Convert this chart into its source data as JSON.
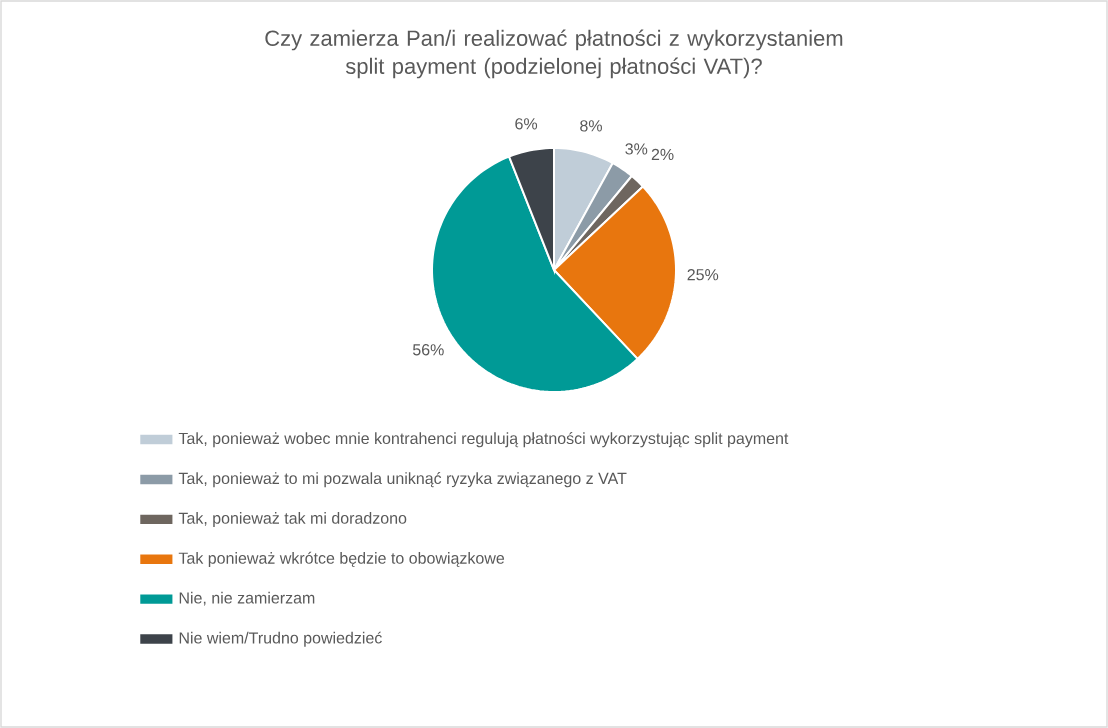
{
  "chart_data": {
    "type": "pie",
    "title": "Czy zamierza Pan/i realizować płatności z wykorzystaniem split payment (podzielonej płatności VAT)?",
    "categories": [
      "Tak, ponieważ wobec mnie kontrahenci regulują płatności wykorzystując split payment",
      "Tak, ponieważ to mi pozwala uniknąć ryzyka związanego z VAT",
      "Tak, ponieważ tak mi doradzono",
      "Tak ponieważ wkrótce będzie to obowiązkowe",
      "Nie, nie zamierzam",
      "Nie wiem/Trudno powiedzieć"
    ],
    "values": [
      8,
      3,
      2,
      25,
      56,
      6
    ],
    "value_labels": [
      "8%",
      "3%",
      "2%",
      "25%",
      "56%",
      "6%"
    ],
    "colors": [
      "#c0cdd8",
      "#8c9ba7",
      "#6e665f",
      "#e8760e",
      "#009a96",
      "#3d434a"
    ],
    "legend": "bottom"
  }
}
